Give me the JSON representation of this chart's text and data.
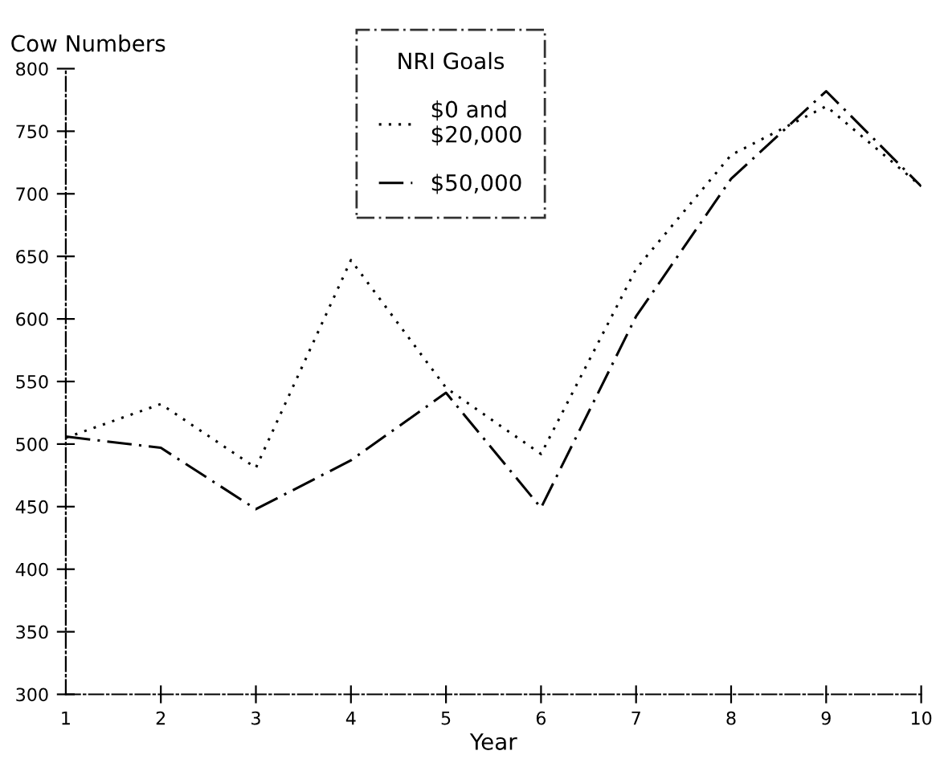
{
  "chart_data": {
    "type": "line",
    "ylabel": "Cow Numbers",
    "xlabel": "Year",
    "legend_title": "NRI Goals",
    "x": [
      1,
      2,
      3,
      4,
      5,
      6,
      7,
      8,
      9,
      10
    ],
    "series": [
      {
        "name": "$0 and\n$20,000",
        "color": "#000000",
        "line_style": "dotted",
        "values": [
          505,
          532,
          481,
          647,
          545,
          492,
          640,
          731,
          770,
          706
        ]
      },
      {
        "name": "$50,000",
        "color": "#000000",
        "line_style": "dashed",
        "values": [
          506,
          497,
          448,
          487,
          541,
          449,
          602,
          712,
          782,
          706
        ]
      }
    ],
    "xlim": [
      1,
      10
    ],
    "xticks": [
      1,
      2,
      3,
      4,
      5,
      6,
      7,
      8,
      9,
      10
    ],
    "ylim": [
      300,
      800
    ],
    "yticks": [
      300,
      350,
      400,
      450,
      500,
      550,
      600,
      650,
      700,
      750,
      800
    ],
    "grid": false,
    "legend": "top",
    "marker": "none"
  }
}
